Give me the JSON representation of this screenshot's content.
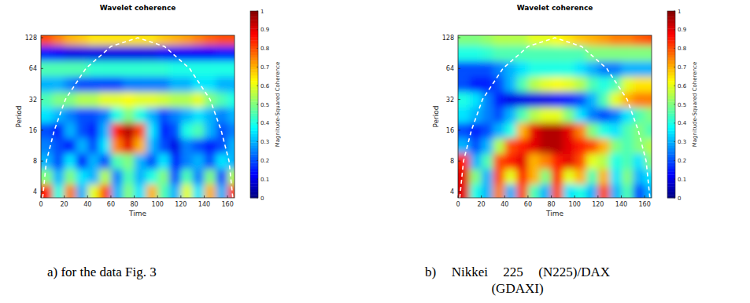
{
  "chart_data": [
    {
      "type": "heatmap",
      "title": "Wavelet coherence",
      "caption": "a) for the data Fig. 3",
      "x_label": "Time",
      "y_label": "Period",
      "log": "y",
      "x": [
        5,
        15,
        25,
        35,
        45,
        55,
        65,
        75,
        85,
        95,
        105,
        115,
        125,
        135,
        145,
        155,
        165
      ],
      "y": [
        4,
        5.66,
        8,
        11.31,
        16,
        22.63,
        32,
        45.25,
        64,
        90.51,
        128
      ],
      "values": [
        [
          0.85,
          0.4,
          0.75,
          0.3,
          0.6,
          0.8,
          0.3,
          0.5,
          0.35,
          0.7,
          0.45,
          0.3,
          0.6,
          0.35,
          0.7,
          0.3,
          0.8
        ],
        [
          0.5,
          0.3,
          0.5,
          0.35,
          0.3,
          0.55,
          0.25,
          0.45,
          0.3,
          0.4,
          0.5,
          0.2,
          0.45,
          0.25,
          0.5,
          0.2,
          0.55
        ],
        [
          0.3,
          0.2,
          0.35,
          0.15,
          0.3,
          0.2,
          0.45,
          0.5,
          0.3,
          0.2,
          0.35,
          0.15,
          0.25,
          0.3,
          0.2,
          0.35,
          0.3
        ],
        [
          0.25,
          0.2,
          0.15,
          0.3,
          0.2,
          0.35,
          0.75,
          0.9,
          0.7,
          0.3,
          0.2,
          0.1,
          0.25,
          0.2,
          0.15,
          0.2,
          0.3
        ],
        [
          0.2,
          0.15,
          0.3,
          0.2,
          0.15,
          0.3,
          0.85,
          0.95,
          0.8,
          0.35,
          0.15,
          0.2,
          0.4,
          0.45,
          0.3,
          0.2,
          0.25
        ],
        [
          0.35,
          0.3,
          0.25,
          0.2,
          0.2,
          0.25,
          0.4,
          0.5,
          0.4,
          0.3,
          0.2,
          0.25,
          0.3,
          0.35,
          0.3,
          0.25,
          0.3
        ],
        [
          0.45,
          0.5,
          0.5,
          0.55,
          0.55,
          0.6,
          0.6,
          0.62,
          0.6,
          0.6,
          0.58,
          0.55,
          0.55,
          0.6,
          0.5,
          0.45,
          0.4
        ],
        [
          0.3,
          0.3,
          0.25,
          0.2,
          0.2,
          0.2,
          0.2,
          0.25,
          0.25,
          0.25,
          0.25,
          0.3,
          0.3,
          0.35,
          0.35,
          0.3,
          0.3
        ],
        [
          0.45,
          0.45,
          0.45,
          0.45,
          0.42,
          0.42,
          0.42,
          0.42,
          0.42,
          0.42,
          0.42,
          0.4,
          0.4,
          0.4,
          0.4,
          0.4,
          0.4
        ],
        [
          0.15,
          0.12,
          0.1,
          0.1,
          0.1,
          0.1,
          0.1,
          0.1,
          0.1,
          0.1,
          0.12,
          0.12,
          0.12,
          0.12,
          0.12,
          0.15,
          0.15
        ],
        [
          0.8,
          0.75,
          0.7,
          0.68,
          0.65,
          0.65,
          0.65,
          0.65,
          0.65,
          0.65,
          0.68,
          0.7,
          0.72,
          0.75,
          0.78,
          0.8,
          0.8
        ]
      ],
      "xlim": [
        0,
        166
      ],
      "ylim": [
        3.5,
        135
      ],
      "xticks": [
        0,
        20,
        40,
        60,
        80,
        100,
        120,
        140,
        160
      ],
      "yticks": [
        4,
        8,
        16,
        32,
        64,
        128
      ],
      "colorbar": {
        "label": "Magnitude-Squared Coherence",
        "range": [
          0,
          1
        ],
        "ticks": [
          0,
          0.1,
          0.2,
          0.3,
          0.4,
          0.5,
          0.6,
          0.7,
          0.8,
          0.9,
          1
        ]
      },
      "coi": {
        "x": [
          1.5,
          4.7,
          11.5,
          21,
          38.5,
          60,
          83,
          106,
          127.5,
          145,
          154.5,
          161.3,
          164.5
        ],
        "y": [
          3.5,
          8,
          16,
          32,
          64,
          105,
          128,
          105,
          64,
          32,
          16,
          8,
          3.5
        ]
      }
    },
    {
      "type": "heatmap",
      "title": "Wavelet coherence",
      "caption": "b) Nikkei 225 (N225)/DAX (GDAXI)",
      "x_label": "Time",
      "y_label": "Period",
      "log": "y",
      "x": [
        5,
        15,
        25,
        35,
        45,
        55,
        65,
        75,
        85,
        95,
        105,
        115,
        125,
        135,
        145,
        155,
        165
      ],
      "y": [
        4,
        5.66,
        8,
        11.31,
        16,
        22.63,
        32,
        45.25,
        64,
        90.51,
        128
      ],
      "values": [
        [
          0.9,
          0.4,
          0.3,
          0.75,
          0.3,
          0.8,
          0.45,
          0.3,
          0.8,
          0.35,
          0.4,
          0.3,
          0.8,
          0.3,
          0.45,
          0.2,
          0.3
        ],
        [
          0.9,
          0.5,
          0.3,
          0.8,
          0.6,
          0.85,
          0.7,
          0.5,
          0.85,
          0.6,
          0.7,
          0.45,
          0.7,
          0.35,
          0.5,
          0.3,
          0.35
        ],
        [
          0.85,
          0.3,
          0.45,
          0.8,
          0.85,
          0.9,
          0.7,
          0.75,
          0.85,
          0.9,
          0.8,
          0.6,
          0.55,
          0.4,
          0.45,
          0.35,
          0.5
        ],
        [
          0.3,
          0.2,
          0.3,
          0.55,
          0.8,
          0.85,
          0.9,
          0.95,
          0.95,
          0.9,
          0.85,
          0.8,
          0.7,
          0.5,
          0.45,
          0.5,
          0.55
        ],
        [
          0.2,
          0.15,
          0.2,
          0.3,
          0.4,
          0.7,
          0.9,
          0.95,
          0.95,
          0.9,
          0.75,
          0.5,
          0.4,
          0.35,
          0.45,
          0.5,
          0.45
        ],
        [
          0.35,
          0.3,
          0.25,
          0.2,
          0.3,
          0.45,
          0.55,
          0.6,
          0.6,
          0.5,
          0.35,
          0.25,
          0.2,
          0.25,
          0.35,
          0.45,
          0.5
        ],
        [
          0.4,
          0.35,
          0.25,
          0.15,
          0.1,
          0.1,
          0.1,
          0.1,
          0.12,
          0.15,
          0.2,
          0.3,
          0.45,
          0.6,
          0.7,
          0.75,
          0.75
        ],
        [
          0.2,
          0.15,
          0.15,
          0.2,
          0.3,
          0.45,
          0.55,
          0.6,
          0.62,
          0.6,
          0.55,
          0.45,
          0.4,
          0.45,
          0.6,
          0.65,
          0.65
        ],
        [
          0.2,
          0.2,
          0.2,
          0.25,
          0.3,
          0.35,
          0.4,
          0.4,
          0.4,
          0.4,
          0.35,
          0.3,
          0.25,
          0.25,
          0.3,
          0.3,
          0.3
        ],
        [
          0.4,
          0.4,
          0.42,
          0.45,
          0.45,
          0.45,
          0.45,
          0.45,
          0.45,
          0.45,
          0.45,
          0.5,
          0.5,
          0.5,
          0.5,
          0.5,
          0.5
        ],
        [
          0.5,
          0.5,
          0.52,
          0.55,
          0.55,
          0.55,
          0.6,
          0.6,
          0.62,
          0.65,
          0.68,
          0.7,
          0.72,
          0.75,
          0.75,
          0.78,
          0.8
        ]
      ],
      "xlim": [
        0,
        166
      ],
      "ylim": [
        3.5,
        135
      ],
      "xticks": [
        0,
        20,
        40,
        60,
        80,
        100,
        120,
        140,
        160
      ],
      "yticks": [
        4,
        8,
        16,
        32,
        64,
        128
      ],
      "colorbar": {
        "label": "Magnitude-Squared Coherence",
        "range": [
          0,
          1
        ],
        "ticks": [
          0,
          0.1,
          0.2,
          0.3,
          0.4,
          0.5,
          0.6,
          0.7,
          0.8,
          0.9,
          1
        ]
      },
      "coi": {
        "x": [
          1.5,
          4.7,
          11.5,
          21,
          38.5,
          60,
          83,
          106,
          127.5,
          145,
          154.5,
          161.3,
          164.5
        ],
        "y": [
          3.5,
          8,
          16,
          32,
          64,
          105,
          128,
          105,
          64,
          32,
          16,
          8,
          3.5
        ]
      }
    }
  ]
}
